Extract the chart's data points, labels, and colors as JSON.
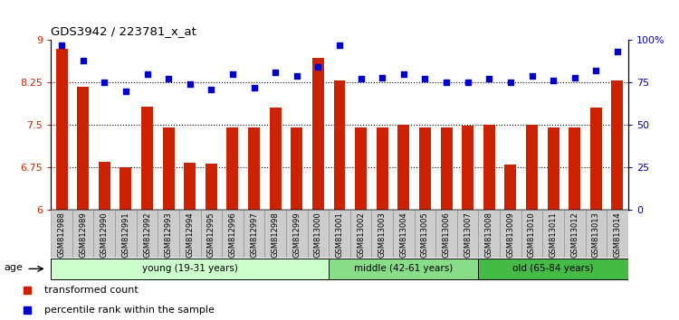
{
  "title": "GDS3942 / 223781_x_at",
  "samples": [
    "GSM812988",
    "GSM812989",
    "GSM812990",
    "GSM812991",
    "GSM812992",
    "GSM812993",
    "GSM812994",
    "GSM812995",
    "GSM812996",
    "GSM812997",
    "GSM812998",
    "GSM812999",
    "GSM813000",
    "GSM813001",
    "GSM813002",
    "GSM813003",
    "GSM813004",
    "GSM813005",
    "GSM813006",
    "GSM813007",
    "GSM813008",
    "GSM813009",
    "GSM813010",
    "GSM813011",
    "GSM813012",
    "GSM813013",
    "GSM813014"
  ],
  "bar_values": [
    8.85,
    8.18,
    6.85,
    6.75,
    7.82,
    7.45,
    6.83,
    6.82,
    7.45,
    7.45,
    7.8,
    7.45,
    8.68,
    8.28,
    7.45,
    7.45,
    7.5,
    7.45,
    7.45,
    7.48,
    7.5,
    6.8,
    7.5,
    7.45,
    7.46,
    7.8,
    8.28
  ],
  "dot_values": [
    97,
    88,
    75,
    70,
    80,
    77,
    74,
    71,
    80,
    72,
    81,
    79,
    84,
    97,
    77,
    78,
    80,
    77,
    75,
    75,
    77,
    75,
    79,
    76,
    78,
    82,
    93
  ],
  "bar_color": "#cc2200",
  "dot_color": "#0000cc",
  "ylim_left": [
    6,
    9
  ],
  "ylim_right": [
    0,
    100
  ],
  "yticks_left": [
    6,
    6.75,
    7.5,
    8.25,
    9
  ],
  "yticks_right": [
    0,
    25,
    50,
    75,
    100
  ],
  "ytick_labels_left": [
    "6",
    "6.75",
    "7.5",
    "8.25",
    "9"
  ],
  "ytick_labels_right": [
    "0",
    "25",
    "50",
    "75",
    "100%"
  ],
  "hlines": [
    6.75,
    7.5,
    8.25
  ],
  "groups": [
    {
      "label": "young (19-31 years)",
      "start": 0,
      "end": 13,
      "color": "#ccffcc"
    },
    {
      "label": "middle (42-61 years)",
      "start": 13,
      "end": 20,
      "color": "#88dd88"
    },
    {
      "label": "old (65-84 years)",
      "start": 20,
      "end": 27,
      "color": "#44bb44"
    }
  ],
  "age_label": "age",
  "legend_items": [
    {
      "label": "transformed count",
      "color": "#cc2200"
    },
    {
      "label": "percentile rank within the sample",
      "color": "#0000cc"
    }
  ],
  "tick_label_color_left": "#cc2200",
  "tick_label_color_right": "#0000cc",
  "xtick_bg_color": "#cccccc",
  "xtick_border_color": "#888888"
}
